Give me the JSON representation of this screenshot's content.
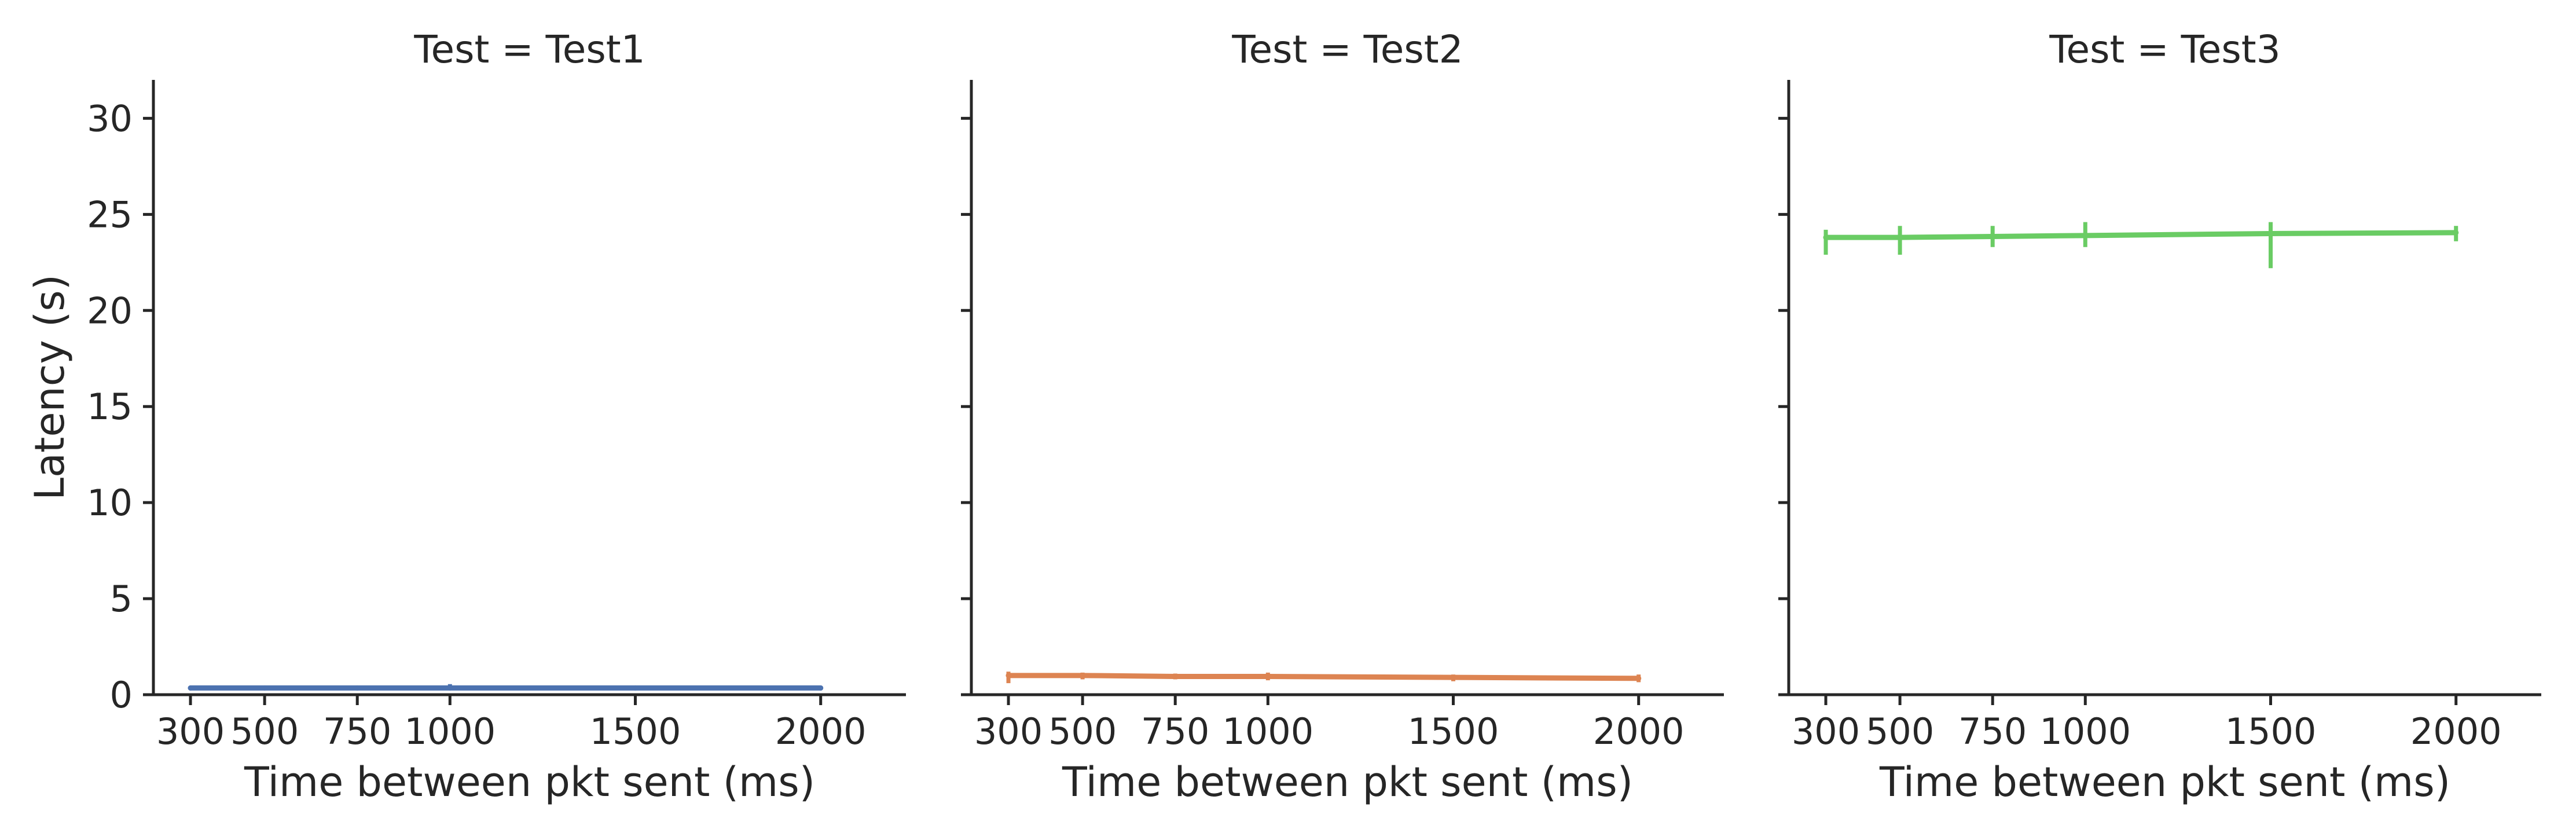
{
  "chart_data": [
    {
      "type": "line",
      "title": "Test = Test1",
      "xlabel": "Time between pkt sent (ms)",
      "ylabel": "Latency (s)",
      "x": [
        300,
        500,
        750,
        1000,
        1500,
        2000
      ],
      "xticks": [
        300,
        500,
        750,
        1000,
        1500,
        2000
      ],
      "xlim": [
        200,
        2230
      ],
      "yticks": [
        0,
        5,
        10,
        15,
        20,
        25,
        30
      ],
      "ylim": [
        0,
        32
      ],
      "grid": false,
      "series": [
        {
          "color": "#4c72b0",
          "values": [
            0.35,
            0.35,
            0.35,
            0.35,
            0.35,
            0.35
          ],
          "err_low": [
            0.3,
            0.3,
            0.3,
            0.25,
            0.3,
            0.3
          ],
          "err_high": [
            0.4,
            0.4,
            0.4,
            0.55,
            0.4,
            0.4
          ]
        }
      ]
    },
    {
      "type": "line",
      "title": "Test = Test2",
      "xlabel": "Time between pkt sent (ms)",
      "ylabel": "",
      "x": [
        300,
        500,
        750,
        1000,
        1500,
        2000
      ],
      "xticks": [
        300,
        500,
        750,
        1000,
        1500,
        2000
      ],
      "xlim": [
        200,
        2230
      ],
      "yticks": [
        0,
        5,
        10,
        15,
        20,
        25,
        30
      ],
      "ylim": [
        0,
        32
      ],
      "grid": false,
      "series": [
        {
          "color": "#dd8452",
          "values": [
            1.0,
            1.0,
            0.95,
            0.95,
            0.9,
            0.85
          ],
          "err_low": [
            0.6,
            0.8,
            0.8,
            0.75,
            0.7,
            0.65
          ],
          "err_high": [
            1.2,
            1.15,
            1.1,
            1.15,
            1.05,
            1.05
          ]
        }
      ]
    },
    {
      "type": "line",
      "title": "Test = Test3",
      "xlabel": "Time between pkt sent (ms)",
      "ylabel": "",
      "x": [
        300,
        500,
        750,
        1000,
        1500,
        2000
      ],
      "xticks": [
        300,
        500,
        750,
        1000,
        1500,
        2000
      ],
      "xlim": [
        200,
        2230
      ],
      "yticks": [
        0,
        5,
        10,
        15,
        20,
        25,
        30
      ],
      "ylim": [
        0,
        32
      ],
      "grid": false,
      "series": [
        {
          "color": "#6acc64",
          "values": [
            23.8,
            23.8,
            23.85,
            23.9,
            24.0,
            24.05
          ],
          "err_low": [
            22.9,
            22.9,
            23.3,
            23.3,
            22.2,
            23.6
          ],
          "err_high": [
            24.2,
            24.4,
            24.4,
            24.6,
            24.6,
            24.4
          ]
        }
      ]
    }
  ]
}
